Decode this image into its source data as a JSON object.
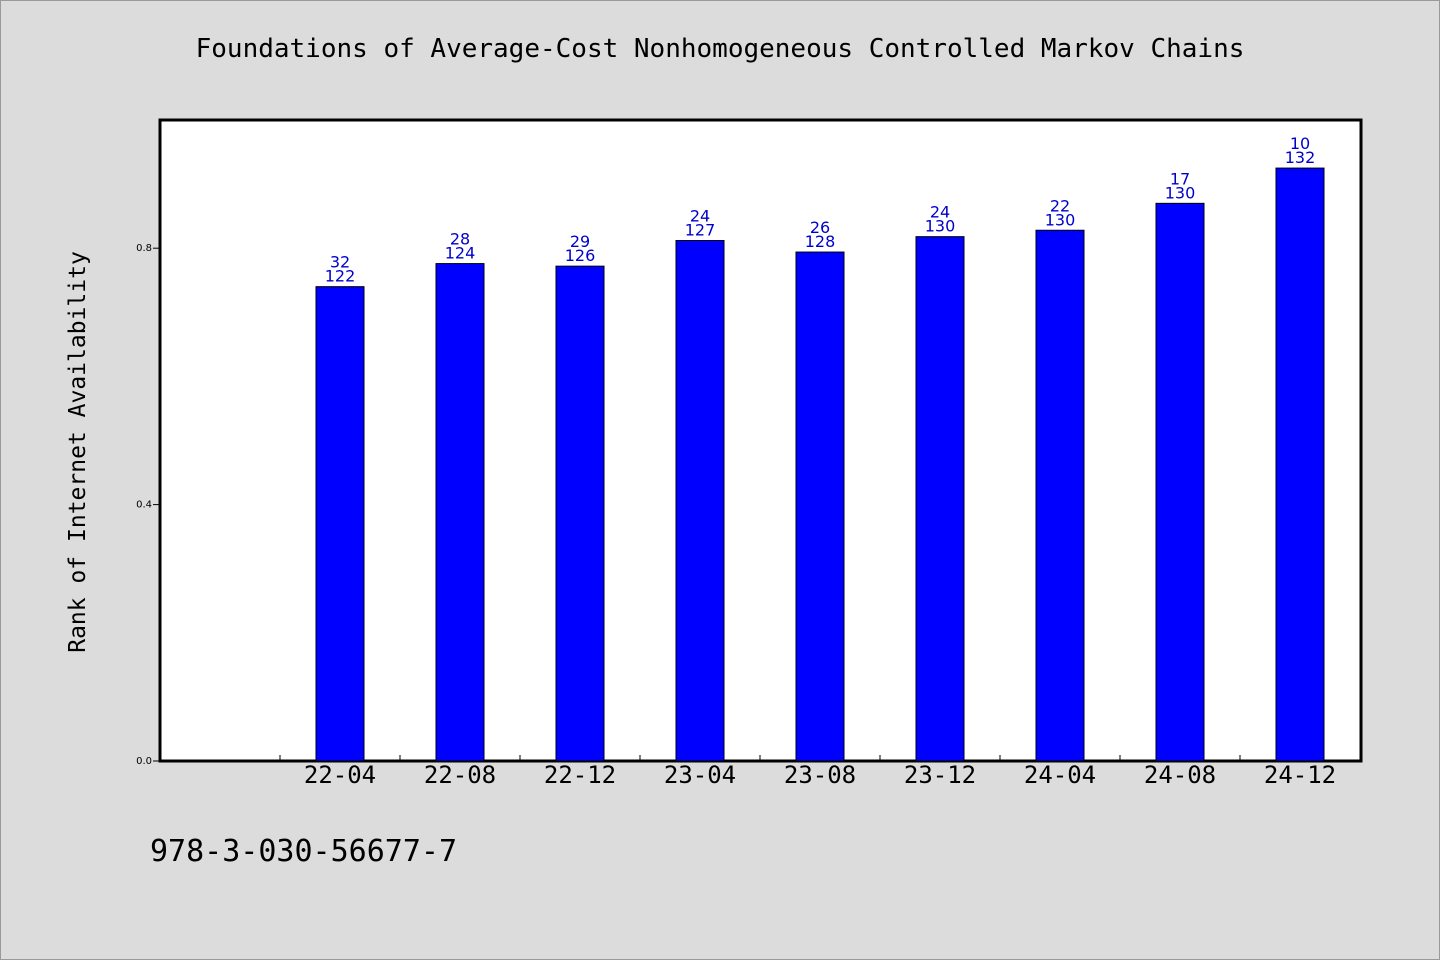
{
  "title": "Foundations of Average-Cost Nonhomogeneous Controlled Markov Chains",
  "footer": "978-3-030-56677-7",
  "chart_data": {
    "type": "bar",
    "title": "Foundations of Average-Cost Nonhomogeneous Controlled Markov Chains",
    "xlabel": "",
    "ylabel": "Rank of Internet Availability",
    "categories": [
      "22-04",
      "22-08",
      "22-12",
      "23-04",
      "23-08",
      "23-12",
      "24-04",
      "24-08",
      "24-12"
    ],
    "values": [
      0.74,
      0.776,
      0.772,
      0.812,
      0.794,
      0.818,
      0.828,
      0.87,
      0.925
    ],
    "labels_top": [
      "32",
      "28",
      "29",
      "24",
      "26",
      "24",
      "22",
      "17",
      "10"
    ],
    "labels_bottom": [
      "122",
      "124",
      "126",
      "127",
      "128",
      "130",
      "130",
      "130",
      "132"
    ],
    "ylim": [
      0,
      1.0
    ],
    "yticks": [
      0.0,
      0.4,
      0.8
    ],
    "ytick_labels": [
      "0.0",
      "0.4",
      "0.8"
    ],
    "grid": false,
    "colors": {
      "bar": "#0000ff",
      "bar_label": "#0000cc",
      "plot_bg": "#ffffff",
      "page_bg": "#dcdcdc"
    }
  }
}
